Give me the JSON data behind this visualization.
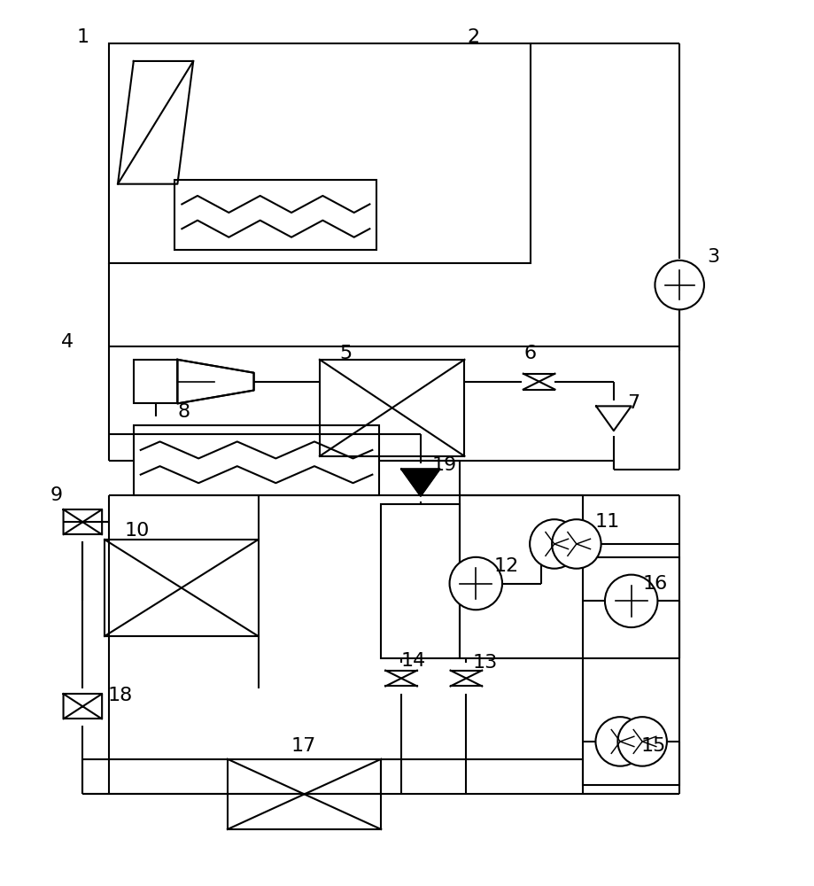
{
  "bg_color": "#ffffff",
  "line_color": "#000000",
  "lw": 1.5,
  "fig_w": 9.19,
  "fig_h": 10.0
}
